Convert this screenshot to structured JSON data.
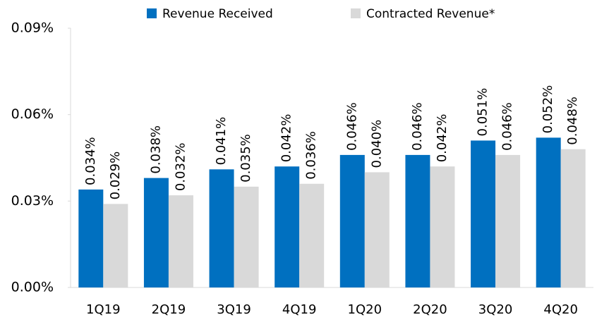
{
  "chart_data": {
    "type": "bar",
    "categories": [
      "1Q19",
      "2Q19",
      "3Q19",
      "4Q19",
      "1Q20",
      "2Q20",
      "3Q20",
      "4Q20"
    ],
    "series": [
      {
        "name": "Revenue Received",
        "color": "#0070c0",
        "values": [
          0.034,
          0.038,
          0.041,
          0.042,
          0.046,
          0.046,
          0.051,
          0.052
        ],
        "value_labels": [
          "0.034%",
          "0.038%",
          "0.041%",
          "0.042%",
          "0.046%",
          "0.046%",
          "0.051%",
          "0.052%"
        ]
      },
      {
        "name": "Contracted Revenue*",
        "color": "#d9d9d9",
        "values": [
          0.029,
          0.032,
          0.035,
          0.036,
          0.04,
          0.042,
          0.046,
          0.048
        ],
        "value_labels": [
          "0.029%",
          "0.032%",
          "0.035%",
          "0.036%",
          "0.040%",
          "0.042%",
          "0.046%",
          "0.048%"
        ]
      }
    ],
    "ylim": [
      0,
      0.09
    ],
    "yticks": [
      {
        "value": 0,
        "label": "0.00%"
      },
      {
        "value": 0.03,
        "label": "0.03%"
      },
      {
        "value": 0.06,
        "label": "0.06%"
      },
      {
        "value": 0.09,
        "label": "0.09%"
      }
    ],
    "grid": false,
    "legend": "top"
  }
}
